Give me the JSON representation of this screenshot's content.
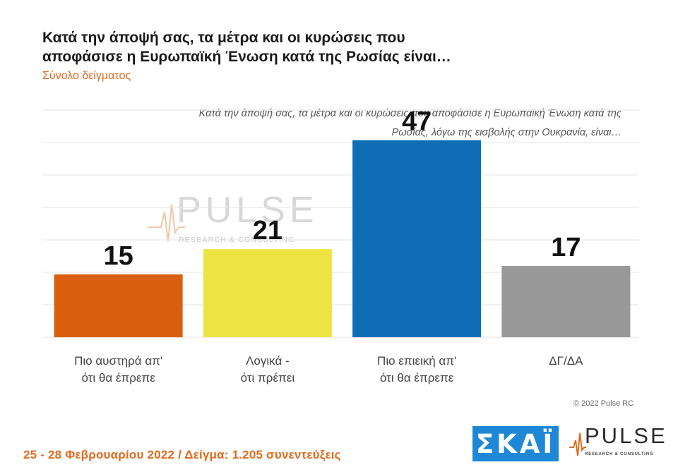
{
  "title_lines": [
    "Κατά την άποψή σας, τα μέτρα και οι κυρώσεις που",
    "αποφάσισε η Ευρωπαϊκή Ένωση κατά της Ρωσίας είναι…"
  ],
  "subtitle": "Σύνολο δείγματος",
  "question_lines": [
    "Κατά την άποψή σας, τα μέτρα και οι κυρώσεις που αποφάσισε η Ευρωπαϊκή Ένωση κατά της",
    "Ρωσίας, λόγω της εισβολής στην Ουκρανία, είναι…"
  ],
  "chart_data": {
    "type": "bar",
    "categories": [
      [
        "Πιο αυστηρά απ'",
        "ότι θα έπρεπε"
      ],
      [
        "Λογικά -",
        "ότι πρέπει"
      ],
      [
        "Πιο επιεική απ'",
        "ότι θα έπρεπε"
      ],
      [
        "ΔΓ/ΔΑ"
      ]
    ],
    "values": [
      15,
      21,
      47,
      17
    ],
    "colors": [
      "#d95f0e",
      "#ede443",
      "#0f6db5",
      "#999999"
    ],
    "ylim": [
      0,
      50
    ],
    "grid": true
  },
  "watermark": {
    "text": "PULSE",
    "sub": "RESEARCH & CONSULTING"
  },
  "copyright": "© 2022 Pulse RC",
  "footer": "25 - 28  Φεβρουαρίου  2022  /  Δείγμα:  1.205 συνεντεύξεις",
  "logos": {
    "skai": "ΣΚΑΪ",
    "pulse": "PULSE",
    "pulse_sub": "RESEARCH & CONSULTING"
  },
  "colors": {
    "accent": "#e06c1f",
    "skai_blue": "#1e88d6"
  }
}
